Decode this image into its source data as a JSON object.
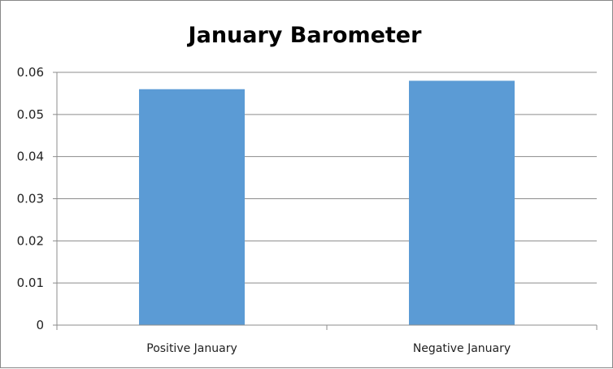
{
  "chart_data": {
    "type": "bar",
    "title": "January Barometer",
    "categories": [
      "Positive January",
      "Negative January"
    ],
    "values": [
      0.056,
      0.058
    ],
    "xlabel": "",
    "ylabel": "",
    "ylim": [
      0,
      0.06
    ],
    "yticks": [
      "0",
      "0.01",
      "0.02",
      "0.03",
      "0.04",
      "0.05",
      "0.06"
    ],
    "grid": true,
    "legend": "none",
    "bar_color": "#5b9bd5"
  }
}
